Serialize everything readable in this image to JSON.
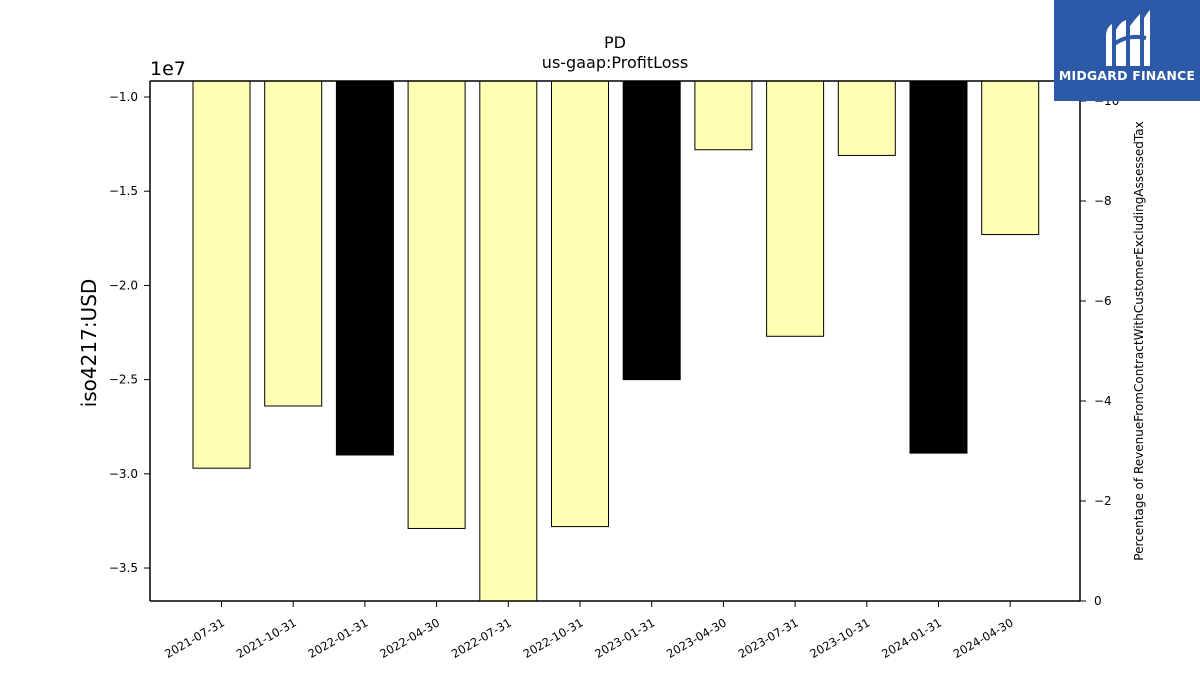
{
  "chart_data": {
    "type": "bar",
    "title": "PD",
    "subtitle": "us-gaap:ProfitLoss",
    "ylabel": "iso4217:USD",
    "y_offset_label": "1e7",
    "y2label": "Percentage of RevenueFromContractWithCustomerExcludingAssessedTax",
    "categories": [
      "2021-07-31",
      "2021-10-31",
      "2022-01-31",
      "2022-04-30",
      "2022-07-31",
      "2022-10-31",
      "2023-01-31",
      "2023-04-30",
      "2023-07-31",
      "2023-10-31",
      "2024-01-31",
      "2024-04-30"
    ],
    "values": [
      -29700000,
      -26400000,
      -29000000,
      -32900000,
      -36800000,
      -32800000,
      -25000000,
      -12800000,
      -22700000,
      -13100000,
      -28900000,
      -17300000
    ],
    "bar_colors": [
      "#ffffb3",
      "#ffffb3",
      "#000000",
      "#ffffb3",
      "#ffffb3",
      "#ffffb3",
      "#000000",
      "#ffffb3",
      "#ffffb3",
      "#ffffb3",
      "#000000",
      "#ffffb3"
    ],
    "ylim": [
      -9150000,
      -36750000
    ],
    "yticks": [
      -10000000,
      -15000000,
      -20000000,
      -25000000,
      -30000000,
      -35000000
    ],
    "ytick_labels": [
      "−1.0",
      "−1.5",
      "−2.0",
      "−2.5",
      "−3.0",
      "−3.5"
    ],
    "y2lim": [
      0,
      -10.4
    ],
    "y2ticks": [
      -10,
      -8,
      -6,
      -4,
      -2,
      0
    ],
    "y2tick_labels": [
      "−10",
      "−8",
      "−6",
      "−4",
      "−2",
      "0"
    ],
    "grid": false
  },
  "logo": {
    "text": "MIDGARD FINANCE"
  }
}
